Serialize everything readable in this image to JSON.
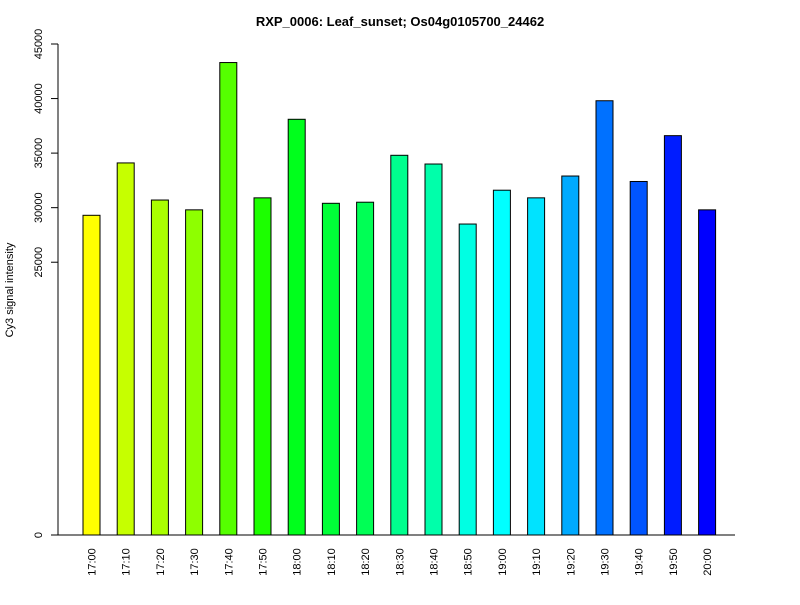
{
  "chart_data": {
    "type": "bar",
    "title": "RXP_0006: Leaf_sunset; Os04g0105700_24462",
    "xlabel": "",
    "ylabel": "Cy3 signal intensity",
    "y_ticks": [
      0,
      25000,
      30000,
      35000,
      40000,
      45000
    ],
    "ylim": [
      0,
      45000
    ],
    "grid": false,
    "legend": "none",
    "categories": [
      "17:00",
      "17:10",
      "17:20",
      "17:30",
      "17:40",
      "17:50",
      "18:00",
      "18:10",
      "18:20",
      "18:30",
      "18:40",
      "18:50",
      "19:00",
      "19:10",
      "19:20",
      "19:30",
      "19:40",
      "19:50",
      "20:00"
    ],
    "values": [
      29300,
      34100,
      30700,
      29800,
      43300,
      30900,
      38100,
      30400,
      30500,
      34800,
      34000,
      28500,
      31600,
      30900,
      32900,
      39800,
      32400,
      36600,
      29800
    ],
    "colors": [
      "#FFFF00",
      "#C6FF00",
      "#AAFF00",
      "#8EFF00",
      "#55FF00",
      "#1CFF00",
      "#00FF1C",
      "#00FF38",
      "#00FF55",
      "#00FF8E",
      "#00FFAA",
      "#00FFE3",
      "#00FFFF",
      "#00E3FF",
      "#00AAFF",
      "#0071FF",
      "#0055FF",
      "#001CFF",
      "#0000FF"
    ]
  }
}
